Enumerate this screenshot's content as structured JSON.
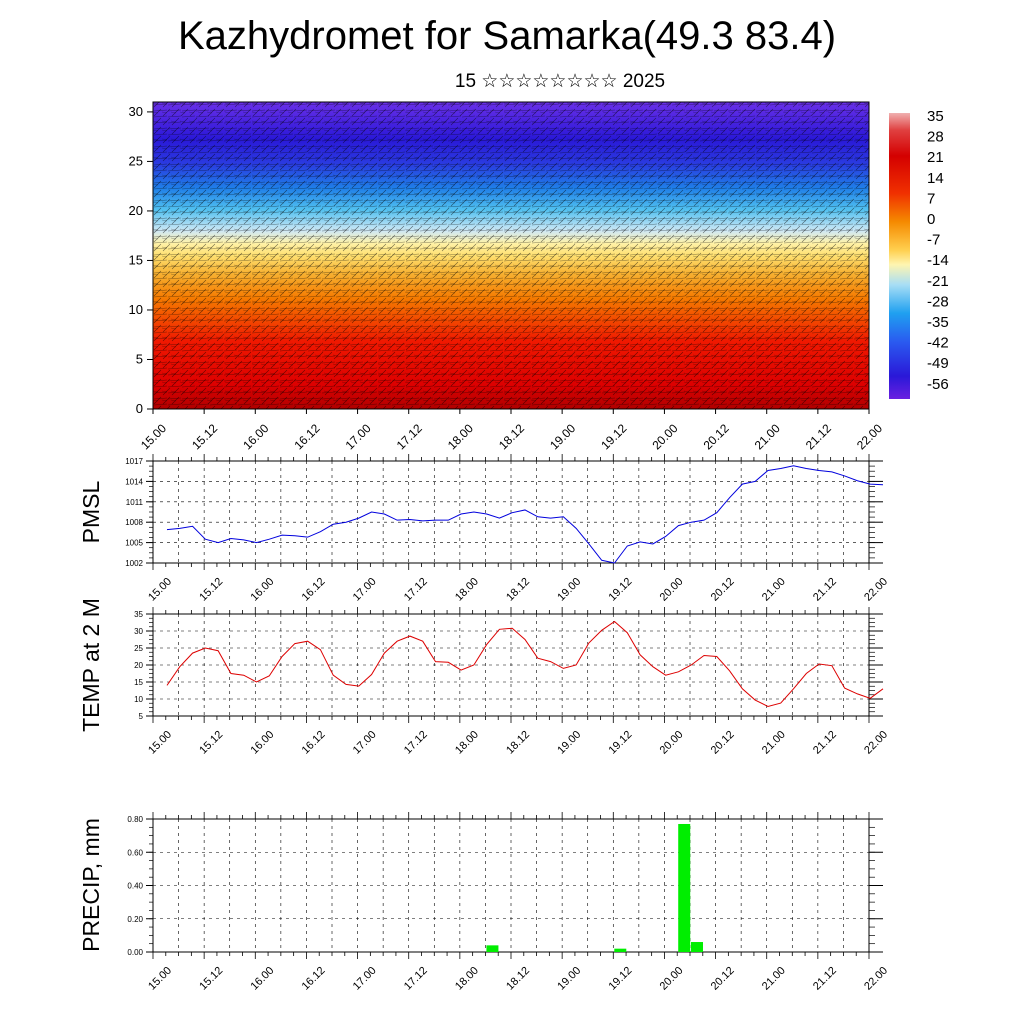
{
  "title": "Kazhydromet for Samarka(49.3 83.4)",
  "subtitle": "15 ☆☆☆☆☆☆☆☆ 2025",
  "colors": {
    "pmsl_line": "#0000dd",
    "temp_line": "#dd0000",
    "precip_bar": "#00ee00",
    "cold_end": "#6a20e0",
    "warm_end": "#e00000"
  },
  "time_ticks": [
    "15.00",
    "15.12",
    "16.00",
    "16.12",
    "17.00",
    "17.12",
    "18.00",
    "18.12",
    "19.00",
    "19.12",
    "20.00",
    "20.12",
    "21.00",
    "21.12",
    "22.00"
  ],
  "colorbar_labels": [
    "35",
    "28",
    "21",
    "14",
    "7",
    "0",
    "-7",
    "-14",
    "-21",
    "-28",
    "-35",
    "-42",
    "-49",
    "-56"
  ],
  "chart_data": [
    {
      "type": "heatmap",
      "title": "",
      "xlabel": "",
      "ylabel": "",
      "ylim": [
        0,
        31
      ],
      "yticks": [
        "0",
        "5",
        "10",
        "15",
        "20",
        "25",
        "30"
      ],
      "x": [
        "15.00",
        "15.12",
        "16.00",
        "16.12",
        "17.00",
        "17.12",
        "18.00",
        "18.12",
        "19.00",
        "19.12",
        "20.00",
        "20.12",
        "21.00",
        "21.12",
        "22.00"
      ],
      "legend": "colorbar right",
      "value_range": [
        -56,
        35
      ]
    },
    {
      "type": "line",
      "ylabel": "PMSL",
      "ylim": [
        1002,
        1017
      ],
      "yticks": [
        "1002",
        "1005",
        "1008",
        "1011",
        "1014",
        "1017"
      ],
      "x": [
        0,
        3,
        6,
        9,
        12,
        15,
        18,
        21,
        24,
        27,
        30,
        33,
        36,
        39,
        42,
        45,
        48,
        51,
        54,
        57,
        60,
        63,
        66,
        69,
        72,
        75,
        78,
        81,
        84,
        87,
        90,
        93,
        96,
        99,
        102,
        105,
        108,
        111,
        114,
        117,
        120,
        123,
        126,
        129,
        132,
        135,
        138,
        141,
        144,
        147,
        150,
        153,
        156,
        159,
        162,
        165,
        168
      ],
      "values": [
        1006.9,
        1007.1,
        1007.4,
        1005.5,
        1005.0,
        1005.6,
        1005.4,
        1005.0,
        1005.5,
        1006.1,
        1006.0,
        1005.8,
        1006.6,
        1007.7,
        1008.0,
        1008.6,
        1009.5,
        1009.2,
        1008.3,
        1008.4,
        1008.2,
        1008.3,
        1008.3,
        1009.2,
        1009.5,
        1009.2,
        1008.6,
        1009.4,
        1009.8,
        1008.8,
        1008.6,
        1008.8,
        1007.1,
        1004.8,
        1002.4,
        1002.0,
        1004.5,
        1005.1,
        1004.8,
        1005.9,
        1007.5,
        1008.0,
        1008.3,
        1009.4,
        1011.6,
        1013.6,
        1014.0,
        1015.6,
        1015.9,
        1016.3,
        1015.9,
        1015.6,
        1015.4,
        1014.8,
        1014.1,
        1013.6,
        1013.5
      ]
    },
    {
      "type": "line",
      "ylabel": "TEMP at 2 M",
      "ylim": [
        5,
        35
      ],
      "yticks": [
        "5",
        "10",
        "15",
        "20",
        "25",
        "30",
        "35"
      ],
      "x": [
        0,
        3,
        6,
        9,
        12,
        15,
        18,
        21,
        24,
        27,
        30,
        33,
        36,
        39,
        42,
        45,
        48,
        51,
        54,
        57,
        60,
        63,
        66,
        69,
        72,
        75,
        78,
        81,
        84,
        87,
        90,
        93,
        96,
        99,
        102,
        105,
        108,
        111,
        114,
        117,
        120,
        123,
        126,
        129,
        132,
        135,
        138,
        141,
        144,
        147,
        150,
        153,
        156,
        159,
        162,
        165,
        168
      ],
      "values": [
        14.0,
        19.5,
        23.5,
        25.0,
        24.2,
        17.5,
        17.0,
        15.0,
        16.8,
        22.5,
        26.3,
        27.0,
        24.5,
        17.0,
        14.3,
        13.8,
        17.2,
        23.5,
        27.0,
        28.5,
        27.0,
        21.0,
        20.8,
        18.5,
        20.0,
        26.0,
        30.5,
        30.8,
        27.5,
        22.0,
        21.0,
        19.0,
        20.0,
        26.5,
        30.2,
        32.8,
        29.5,
        23.0,
        19.5,
        17.0,
        18.0,
        20.0,
        22.8,
        22.5,
        18.3,
        13.0,
        9.7,
        7.8,
        8.8,
        13.0,
        17.5,
        20.3,
        19.8,
        13.2,
        11.5,
        10.2,
        13.0
      ]
    },
    {
      "type": "bar",
      "ylabel": "PRECIP, mm",
      "ylim": [
        0,
        0.8
      ],
      "yticks": [
        "0.00",
        "0.20",
        "0.40",
        "0.60",
        "0.80"
      ],
      "x": [
        78,
        108,
        123,
        126
      ],
      "values": [
        0.04,
        0.02,
        0.77,
        0.06
      ]
    }
  ]
}
